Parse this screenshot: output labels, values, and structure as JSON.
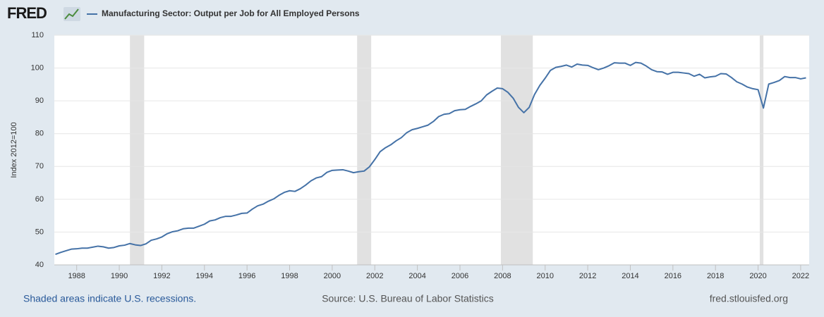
{
  "logo": "FRED",
  "footer": {
    "note": "Shaded areas indicate U.S. recessions.",
    "source": "Source: U.S. Bureau of Labor Statistics",
    "site": "fred.stlouisfed.org"
  },
  "chart_data": {
    "type": "line",
    "ylabel": "Index 2012=100",
    "x": [
      1987,
      1987.25,
      1987.5,
      1987.75,
      1988,
      1988.25,
      1988.5,
      1988.75,
      1989,
      1989.25,
      1989.5,
      1989.75,
      1990,
      1990.25,
      1990.5,
      1990.75,
      1991,
      1991.25,
      1991.5,
      1991.75,
      1992,
      1992.25,
      1992.5,
      1992.75,
      1993,
      1993.25,
      1993.5,
      1993.75,
      1994,
      1994.25,
      1994.5,
      1994.75,
      1995,
      1995.25,
      1995.5,
      1995.75,
      1996,
      1996.25,
      1996.5,
      1996.75,
      1997,
      1997.25,
      1997.5,
      1997.75,
      1998,
      1998.25,
      1998.5,
      1998.75,
      1999,
      1999.25,
      1999.5,
      1999.75,
      2000,
      2000.25,
      2000.5,
      2000.75,
      2001,
      2001.25,
      2001.5,
      2001.75,
      2002,
      2002.25,
      2002.5,
      2002.75,
      2003,
      2003.25,
      2003.5,
      2003.75,
      2004,
      2004.25,
      2004.5,
      2004.75,
      2005,
      2005.25,
      2005.5,
      2005.75,
      2006,
      2006.25,
      2006.5,
      2006.75,
      2007,
      2007.25,
      2007.5,
      2007.75,
      2008,
      2008.25,
      2008.5,
      2008.75,
      2009,
      2009.25,
      2009.5,
      2009.75,
      2010,
      2010.25,
      2010.5,
      2010.75,
      2011,
      2011.25,
      2011.5,
      2011.75,
      2012,
      2012.25,
      2012.5,
      2012.75,
      2013,
      2013.25,
      2013.5,
      2013.75,
      2014,
      2014.25,
      2014.5,
      2014.75,
      2015,
      2015.25,
      2015.5,
      2015.75,
      2016,
      2016.25,
      2016.5,
      2016.75,
      2017,
      2017.25,
      2017.5,
      2017.75,
      2018,
      2018.25,
      2018.5,
      2018.75,
      2019,
      2019.25,
      2019.5,
      2019.75,
      2020,
      2020.25,
      2020.5,
      2020.75,
      2021,
      2021.25,
      2021.5,
      2021.75,
      2022,
      2022.25
    ],
    "series": [
      {
        "name": "Manufacturing Sector: Output per Job for All Employed Persons",
        "color": "#4572a7",
        "values": [
          43.2,
          43.8,
          44.3,
          44.8,
          44.9,
          45.1,
          45.1,
          45.4,
          45.7,
          45.5,
          45.1,
          45.3,
          45.8,
          46.0,
          46.5,
          46.1,
          45.9,
          46.4,
          47.5,
          47.9,
          48.5,
          49.5,
          50.1,
          50.4,
          51.0,
          51.2,
          51.2,
          51.8,
          52.4,
          53.4,
          53.7,
          54.4,
          54.8,
          54.8,
          55.2,
          55.7,
          55.8,
          57.0,
          58.0,
          58.5,
          59.4,
          60.1,
          61.2,
          62.1,
          62.6,
          62.4,
          63.2,
          64.3,
          65.6,
          66.5,
          66.9,
          68.2,
          68.8,
          68.9,
          69.0,
          68.6,
          68.1,
          68.4,
          68.6,
          69.9,
          72.1,
          74.5,
          75.7,
          76.6,
          77.8,
          78.8,
          80.3,
          81.2,
          81.6,
          82.1,
          82.6,
          83.7,
          85.2,
          85.9,
          86.1,
          87.0,
          87.3,
          87.4,
          88.3,
          89.1,
          90.0,
          91.8,
          92.9,
          93.9,
          93.7,
          92.6,
          90.8,
          88.0,
          86.4,
          88.0,
          91.9,
          94.7,
          96.9,
          99.3,
          100.2,
          100.5,
          100.9,
          100.3,
          101.2,
          100.9,
          100.8,
          100.1,
          99.5,
          100.0,
          100.7,
          101.6,
          101.5,
          101.5,
          100.8,
          101.7,
          101.5,
          100.6,
          99.5,
          98.9,
          98.8,
          98.1,
          98.7,
          98.7,
          98.5,
          98.3,
          97.5,
          98.1,
          97.0,
          97.3,
          97.5,
          98.3,
          98.2,
          97.1,
          95.8,
          95.1,
          94.2,
          93.7,
          93.4,
          87.8,
          95.1,
          95.6,
          96.2,
          97.4,
          97.1,
          97.1,
          96.7,
          97.0
        ]
      }
    ],
    "recessions": [
      [
        1990.5,
        1991.17
      ],
      [
        2001.17,
        2001.83
      ],
      [
        2007.92,
        2009.42
      ],
      [
        2020.08,
        2020.25
      ]
    ],
    "recession_color": "#e1e1e1",
    "xlim": [
      1986.95,
      2022.4
    ],
    "xticks": [
      1988,
      1990,
      1992,
      1994,
      1996,
      1998,
      2000,
      2002,
      2004,
      2006,
      2008,
      2010,
      2012,
      2014,
      2016,
      2018,
      2020,
      2022
    ],
    "ylim": [
      40,
      110
    ],
    "yticks": [
      40,
      50,
      60,
      70,
      80,
      90,
      100,
      110
    ],
    "grid": true
  }
}
